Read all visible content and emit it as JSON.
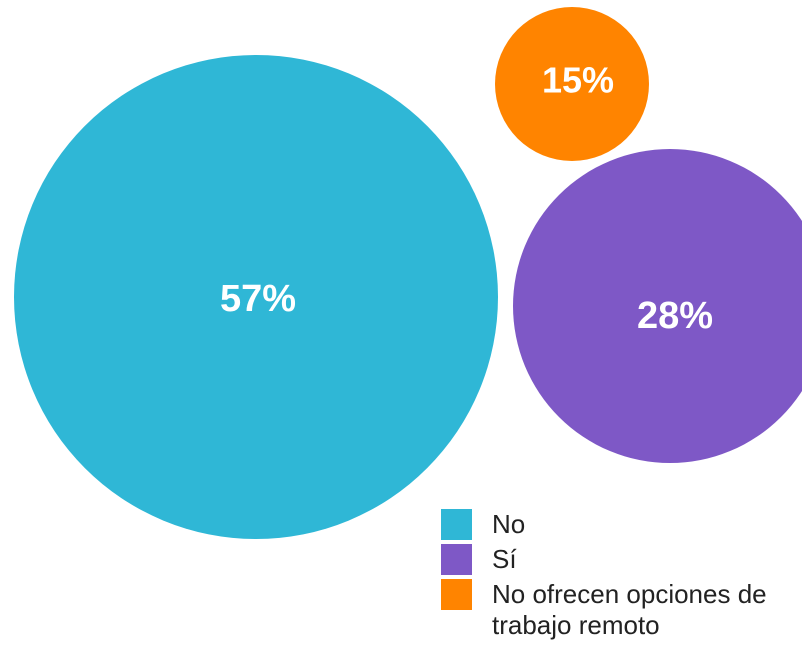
{
  "chart_data": {
    "type": "bubble",
    "title": "",
    "series": [
      {
        "name": "No",
        "value": 57,
        "label": "57%",
        "color": "#2FB7D6"
      },
      {
        "name": "Sí",
        "value": 28,
        "label": "28%",
        "color": "#7E58C6"
      },
      {
        "name": "No ofrecen opciones de trabajo remoto",
        "value": 15,
        "label": "15%",
        "color": "#FF8400"
      }
    ],
    "legend_position": "bottom-right"
  },
  "legend": {
    "items": [
      {
        "label": "No",
        "color": "#2FB7D6"
      },
      {
        "label": "Sí",
        "color": "#7E58C6"
      },
      {
        "label": "No ofrecen opciones de trabajo remoto",
        "color": "#FF8400"
      }
    ]
  }
}
